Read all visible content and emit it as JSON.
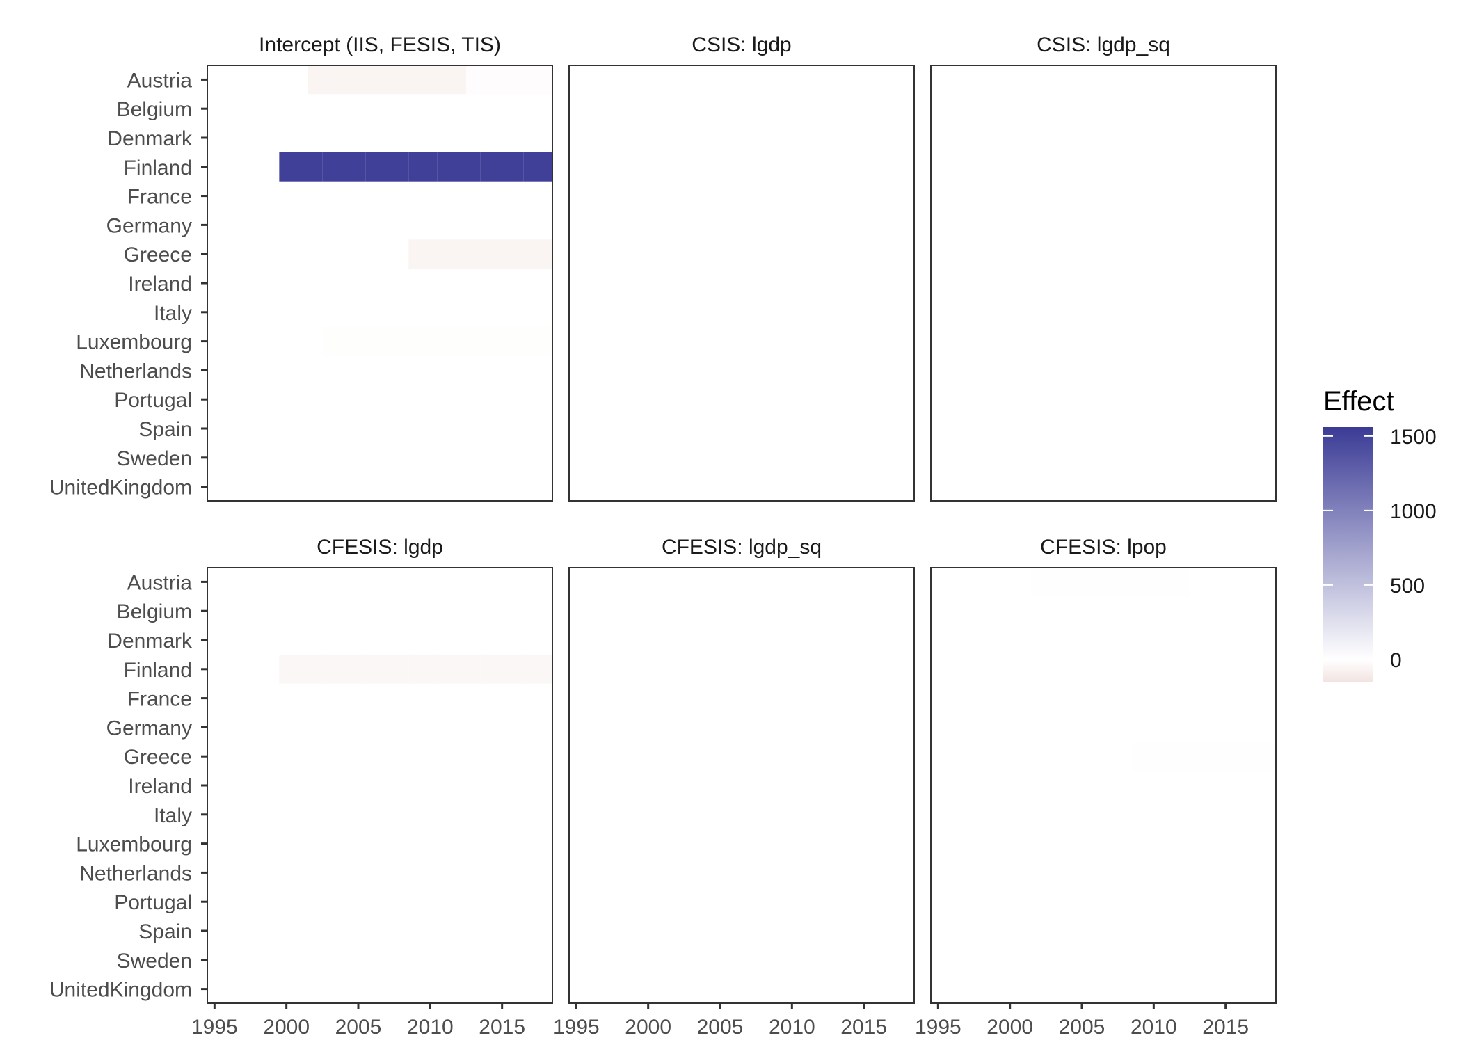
{
  "chart_data": {
    "type": "heatmap",
    "facet_layout": "2x3",
    "x_ticks": [
      1995,
      2000,
      2005,
      2010,
      2015
    ],
    "xlim": [
      1994.5,
      2018.5
    ],
    "countries": [
      "Austria",
      "Belgium",
      "Denmark",
      "Finland",
      "France",
      "Germany",
      "Greece",
      "Ireland",
      "Italy",
      "Luxembourg",
      "Netherlands",
      "Portugal",
      "Spain",
      "Sweden",
      "UnitedKingdom"
    ],
    "legend": {
      "title": "Effect",
      "ticks": [
        1500,
        1000,
        500,
        0
      ],
      "range": [
        -150,
        1560
      ],
      "position": "right",
      "low_color": "#F2E4E2",
      "mid_color": "#FFFFFF",
      "high_color": "#3B3B96"
    },
    "panels": [
      {
        "title": "Intercept (IIS, FESIS, TIS)",
        "show_y_labels": true,
        "show_x_labels": false,
        "segments": [
          {
            "country": "Austria",
            "from": 2002,
            "to": 2012,
            "value": -60
          },
          {
            "country": "Austria",
            "from": 2013,
            "to": 2018,
            "value": -15
          },
          {
            "country": "Finland",
            "from": 2000,
            "to": 2018,
            "value": 1520
          },
          {
            "country": "Greece",
            "from": 2009,
            "to": 2018,
            "value": -60
          },
          {
            "country": "Luxembourg",
            "from": 2003,
            "to": 2018,
            "value": -8
          }
        ]
      },
      {
        "title": "CSIS: lgdp",
        "show_y_labels": false,
        "show_x_labels": false,
        "segments": [
          {
            "country": "Austria",
            "from": 2018,
            "to": 2018,
            "value": -2
          },
          {
            "country": "Belgium",
            "from": 2018,
            "to": 2018,
            "value": -2
          },
          {
            "country": "Denmark",
            "from": 2018,
            "to": 2018,
            "value": -2
          },
          {
            "country": "Finland",
            "from": 2018,
            "to": 2018,
            "value": -2
          },
          {
            "country": "France",
            "from": 2018,
            "to": 2018,
            "value": -2
          },
          {
            "country": "Germany",
            "from": 2018,
            "to": 2018,
            "value": -2
          },
          {
            "country": "Greece",
            "from": 2018,
            "to": 2018,
            "value": -2
          },
          {
            "country": "Ireland",
            "from": 2018,
            "to": 2018,
            "value": -2
          },
          {
            "country": "Italy",
            "from": 2018,
            "to": 2018,
            "value": -2
          },
          {
            "country": "Luxembourg",
            "from": 2018,
            "to": 2018,
            "value": -2
          },
          {
            "country": "Netherlands",
            "from": 2018,
            "to": 2018,
            "value": -2
          },
          {
            "country": "Portugal",
            "from": 2018,
            "to": 2018,
            "value": -2
          },
          {
            "country": "Spain",
            "from": 2018,
            "to": 2018,
            "value": -2
          },
          {
            "country": "Sweden",
            "from": 2018,
            "to": 2018,
            "value": -2
          },
          {
            "country": "UnitedKingdom",
            "from": 2018,
            "to": 2018,
            "value": -2
          }
        ]
      },
      {
        "title": "CSIS: lgdp_sq",
        "show_y_labels": false,
        "show_x_labels": false,
        "segments": []
      },
      {
        "title": "CFESIS: lgdp",
        "show_y_labels": true,
        "show_x_labels": true,
        "segments": [
          {
            "country": "Finland",
            "from": 2000,
            "to": 2018,
            "value": -45
          }
        ]
      },
      {
        "title": "CFESIS: lgdp_sq",
        "show_y_labels": false,
        "show_x_labels": true,
        "segments": []
      },
      {
        "title": "CFESIS: lpop",
        "show_y_labels": false,
        "show_x_labels": true,
        "segments": [
          {
            "country": "Austria",
            "from": 2002,
            "to": 2012,
            "value": -3
          },
          {
            "country": "Greece",
            "from": 2009,
            "to": 2018,
            "value": -4
          }
        ]
      }
    ]
  }
}
